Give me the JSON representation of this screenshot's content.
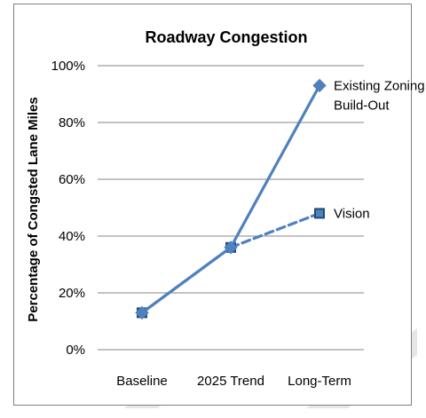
{
  "chart_data": {
    "type": "line",
    "title": "Roadway Congestion",
    "ylabel": "Percentage of Congsted Lane Miles",
    "xlabel": "",
    "categories": [
      "Baseline",
      "2025 Trend",
      "Long-Term"
    ],
    "ylim": [
      0,
      100
    ],
    "yticks": [
      0,
      20,
      40,
      60,
      80,
      100
    ],
    "ytick_labels": [
      "0%",
      "20%",
      "40%",
      "60%",
      "80%",
      "100%"
    ],
    "grid": true,
    "legend": "none",
    "series": [
      {
        "name": "Existing Zoning Build-Out",
        "label_lines": [
          "Existing Zoning",
          "Build-Out"
        ],
        "values": [
          13,
          36,
          93
        ],
        "color": "#4f81bd",
        "line_style": "solid",
        "marker": "diamond"
      },
      {
        "name": "Vision",
        "label_lines": [
          "Vision"
        ],
        "values": [
          13,
          36,
          48
        ],
        "color": "#4f81bd",
        "marker_color": "#1f497d",
        "line_style": "dashed",
        "marker": "square"
      }
    ]
  }
}
